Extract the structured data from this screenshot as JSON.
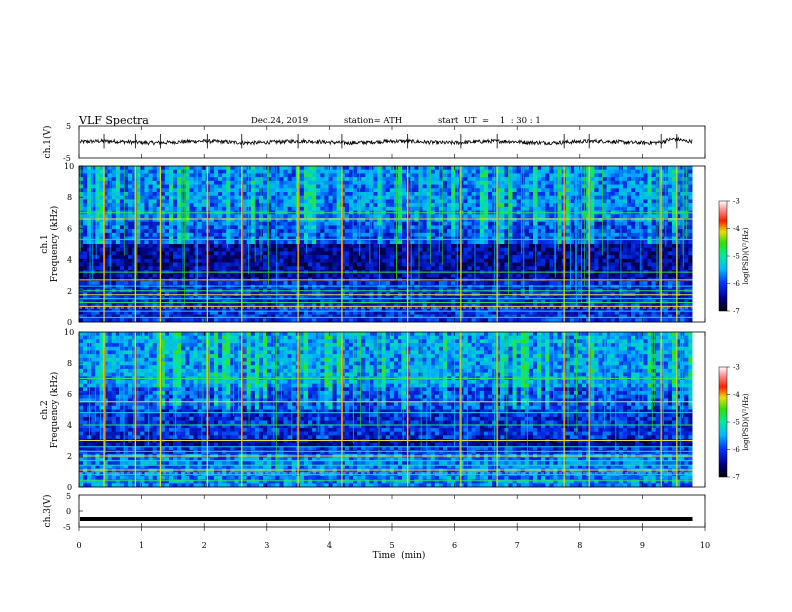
{
  "header": {
    "title": "VLF  Spectra",
    "date": "Dec.24, 2019",
    "station": "station= ATH",
    "start_ut": "start  UT  =    1  : 30 : 1"
  },
  "chart_data": [
    {
      "type": "line",
      "id": "ch1",
      "ylabel": "ch.1(V)",
      "ylim": [
        -5,
        5
      ],
      "yticks": [
        "5",
        "-5"
      ],
      "xlim": [
        0,
        10
      ],
      "data_end_min": 9.8,
      "baseline": 0,
      "noise_amplitude": 0.6
    },
    {
      "type": "heatmap",
      "id": "ch1_spec",
      "ylabel_top": "ch.1",
      "ylabel": "Frequency  (kHz)",
      "xlim": [
        0,
        10
      ],
      "ylim": [
        0,
        10
      ],
      "yticks": [
        "0",
        "2",
        "4",
        "6",
        "8",
        "10"
      ],
      "colorbar": {
        "label": "log(PSD)(V²/Hz)",
        "range": [
          -7,
          -3
        ],
        "ticks": [
          "-3",
          "-4",
          "-5",
          "-6",
          "-7"
        ]
      },
      "strong_bursts_min": [
        0.4,
        0.9,
        1.3,
        2.05,
        2.6,
        3.5,
        4.2,
        5.25,
        6.1,
        6.68,
        7.75,
        8.15,
        9.3,
        9.55
      ],
      "band_lines_khz": [
        0.3,
        0.7,
        1.0,
        1.25,
        1.5,
        1.75,
        2.0,
        2.3,
        2.7,
        3.2,
        5.3,
        6.6,
        7.0
      ]
    },
    {
      "type": "heatmap",
      "id": "ch2_spec",
      "ylabel_top": "ch.2",
      "ylabel": "Frequency  (kHz)",
      "xlim": [
        0,
        10
      ],
      "ylim": [
        0,
        10
      ],
      "yticks": [
        "0",
        "2",
        "4",
        "6",
        "8",
        "10"
      ],
      "colorbar": {
        "label": "log(PSD)(V²/Hz)",
        "range": [
          -7,
          -3
        ],
        "ticks": [
          "-3",
          "-4",
          "-5",
          "-6",
          "-7"
        ]
      },
      "strong_bursts_min": [
        0.4,
        0.9,
        1.3,
        2.05,
        2.6,
        3.5,
        4.2,
        5.25,
        6.1,
        6.68,
        7.75,
        8.15,
        9.3,
        9.55
      ],
      "band_lines_khz": [
        0.4,
        0.8,
        1.1,
        1.4,
        1.7,
        2.0,
        2.3,
        2.6,
        3.0,
        4.0,
        4.8,
        5.5,
        7.0
      ]
    },
    {
      "type": "line",
      "id": "ch3",
      "ylabel": "ch.3(V)",
      "ylim": [
        -5,
        5
      ],
      "yticks": [
        "5",
        "0",
        "-5"
      ],
      "xlim": [
        0,
        10
      ],
      "data_end_min": 9.8,
      "baseline": -2.5
    }
  ],
  "x_axis": {
    "label": "Time  (min)",
    "ticks": [
      "0",
      "1",
      "2",
      "3",
      "4",
      "5",
      "6",
      "7",
      "8",
      "9",
      "10"
    ]
  }
}
